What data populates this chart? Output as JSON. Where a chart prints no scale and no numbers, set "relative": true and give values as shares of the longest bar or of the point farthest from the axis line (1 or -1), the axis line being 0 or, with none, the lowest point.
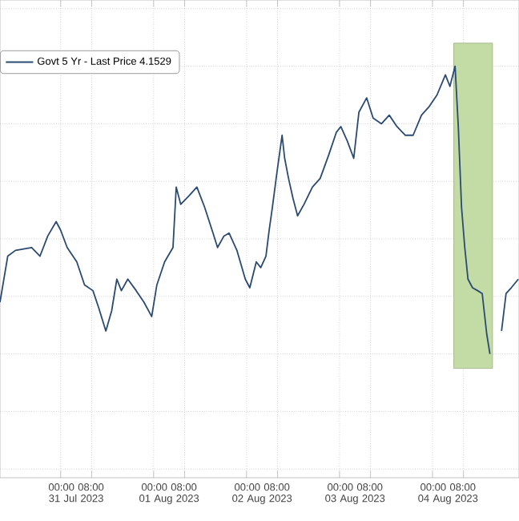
{
  "chart_data": {
    "type": "line",
    "relative": true,
    "grid": true,
    "legend": "top left",
    "xlim": [
      "2023-07-30T08:20",
      "2023-08-04T22:20"
    ],
    "xticks": [
      {
        "value": "2023-07-31T00:00",
        "label": null
      },
      {
        "value": "2023-07-31T04:00",
        "label": "00:00 08:00 31 Jul 2023"
      },
      {
        "value": "2023-07-31T08:00",
        "label": null
      },
      {
        "value": "2023-08-01T00:00",
        "label": null
      },
      {
        "value": "2023-08-01T04:00",
        "label": "00:00 08:00 01 Aug 2023"
      },
      {
        "value": "2023-08-01T08:00",
        "label": null
      },
      {
        "value": "2023-08-02T00:00",
        "label": null
      },
      {
        "value": "2023-08-02T04:00",
        "label": "00:00 08:00 02 Aug 2023"
      },
      {
        "value": "2023-08-02T08:00",
        "label": null
      },
      {
        "value": "2023-08-03T00:00",
        "label": null
      },
      {
        "value": "2023-08-03T04:00",
        "label": "00:00 08:00 03 Aug 2023"
      },
      {
        "value": "2023-08-03T08:00",
        "label": null
      },
      {
        "value": "2023-08-04T00:00",
        "label": null
      },
      {
        "value": "2023-08-04T04:00",
        "label": "00:00 08:00 04 Aug 2023"
      },
      {
        "value": "2023-08-04T08:00",
        "label": null
      }
    ],
    "bands": [
      {
        "axis": "x",
        "from": "2023-08-04T05:30",
        "to": "2023-08-04T15:30",
        "color": "#c3dba5"
      }
    ],
    "series": [
      {
        "name": "Govt 5 Yr - Last Price 4.1529",
        "color": "#2b4a72",
        "x": [
          "2023-07-30T08:20",
          "2023-07-30T10:20",
          "2023-07-30T12:20",
          "2023-07-30T16:30",
          "2023-07-30T18:40",
          "2023-07-30T20:40",
          "2023-07-30T22:50",
          "2023-07-31T00:00",
          "2023-07-31T01:40",
          "2023-07-31T04:10",
          "2023-07-31T06:10",
          "2023-07-31T08:20",
          "2023-07-31T09:50",
          "2023-07-31T11:40",
          "2023-07-31T13:10",
          "2023-07-31T14:30",
          "2023-07-31T15:40",
          "2023-07-31T17:20",
          "2023-07-31T19:30",
          "2023-07-31T21:30",
          "2023-07-31T23:30",
          "2023-08-01T00:50",
          "2023-08-01T02:50",
          "2023-08-01T05:00",
          "2023-08-01T05:50",
          "2023-08-01T07:00",
          "2023-08-01T09:10",
          "2023-08-01T11:10",
          "2023-08-01T13:10",
          "2023-08-01T15:20",
          "2023-08-01T16:30",
          "2023-08-01T18:10",
          "2023-08-01T19:30",
          "2023-08-01T21:30",
          "2023-08-01T23:40",
          "2023-08-02T00:50",
          "2023-08-02T02:30",
          "2023-08-02T03:40",
          "2023-08-02T05:00",
          "2023-08-02T05:50",
          "2023-08-02T06:40",
          "2023-08-02T07:50",
          "2023-08-02T09:10",
          "2023-08-02T09:50",
          "2023-08-02T10:50",
          "2023-08-02T12:00",
          "2023-08-02T13:10",
          "2023-08-02T14:50",
          "2023-08-02T17:00",
          "2023-08-02T19:00",
          "2023-08-02T21:10",
          "2023-08-02T23:10",
          "2023-08-03T00:20",
          "2023-08-03T02:00",
          "2023-08-03T03:40",
          "2023-08-03T05:00",
          "2023-08-03T07:00",
          "2023-08-03T08:40",
          "2023-08-03T10:50",
          "2023-08-03T12:50",
          "2023-08-03T14:50",
          "2023-08-03T17:00",
          "2023-08-03T19:00",
          "2023-08-03T21:10",
          "2023-08-03T23:10",
          "2023-08-04T01:10",
          "2023-08-04T03:20",
          "2023-08-04T04:30",
          "2023-08-04T05:50",
          "2023-08-04T06:40",
          "2023-08-04T07:30",
          "2023-08-04T08:20",
          "2023-08-04T09:10",
          "2023-08-04T10:20",
          "2023-08-04T11:40",
          "2023-08-04T12:50",
          "2023-08-04T14:00",
          "2023-08-04T14:50",
          "2023-08-04T16:20",
          "2023-08-04T17:50",
          "2023-08-04T19:00",
          "2023-08-04T20:20",
          "2023-08-04T22:10"
        ],
        "values": [
          0.18,
          0.34,
          0.36,
          0.37,
          0.34,
          0.41,
          0.46,
          0.43,
          0.37,
          0.32,
          0.24,
          0.22,
          0.16,
          0.08,
          0.15,
          0.26,
          0.22,
          0.26,
          0.22,
          0.18,
          0.13,
          0.24,
          0.32,
          0.37,
          0.58,
          0.52,
          0.55,
          0.58,
          0.51,
          0.42,
          0.37,
          0.41,
          0.42,
          0.36,
          0.26,
          0.23,
          0.32,
          0.3,
          0.34,
          0.43,
          0.51,
          0.63,
          0.76,
          0.68,
          0.61,
          0.54,
          0.48,
          0.52,
          0.58,
          0.61,
          0.69,
          0.77,
          0.79,
          0.74,
          0.68,
          0.84,
          0.89,
          0.82,
          0.8,
          0.83,
          0.79,
          0.76,
          0.76,
          0.83,
          0.86,
          0.9,
          0.97,
          0.93,
          1,
          0.79,
          0.51,
          0.37,
          0.26,
          0.23,
          0.22,
          0.21,
          0.07,
          0,
          null,
          0.08,
          0.21,
          0.23,
          0.26
        ]
      }
    ]
  }
}
